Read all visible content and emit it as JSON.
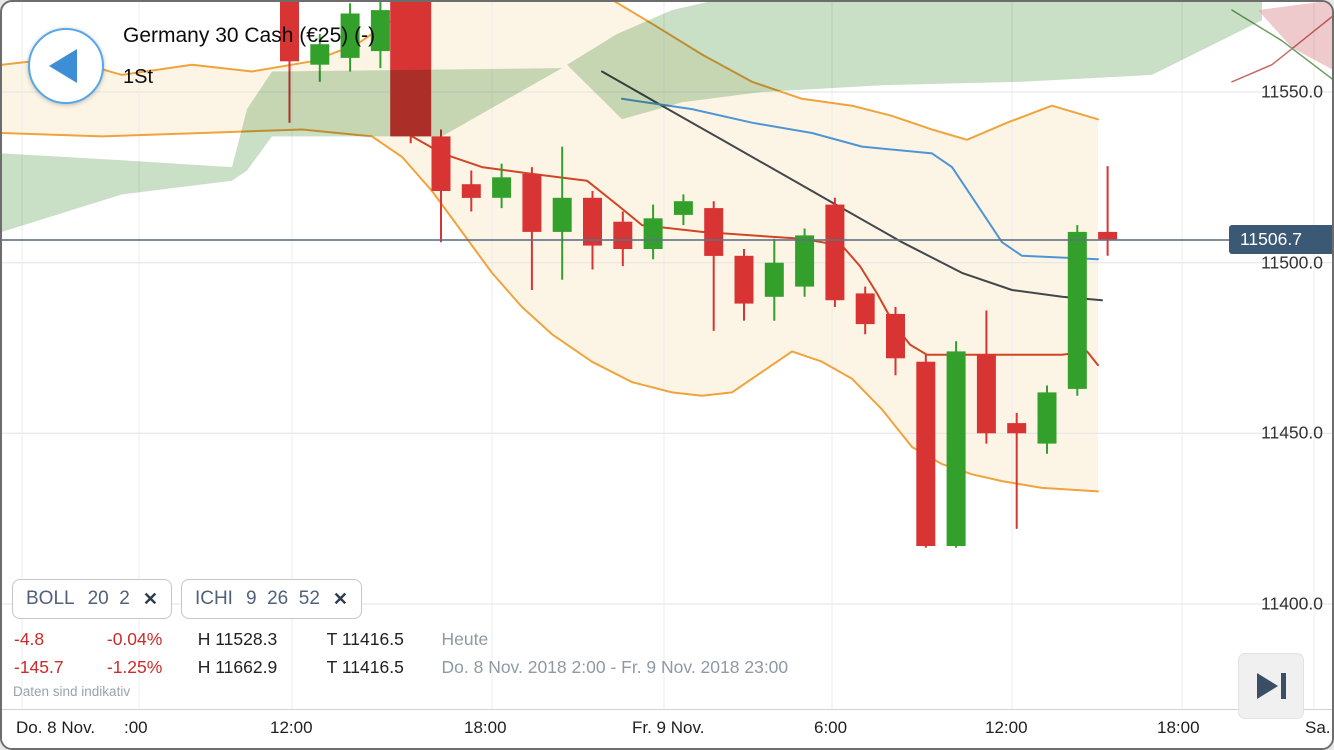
{
  "header": {
    "title": "Germany 30 Cash (€25) (-)",
    "timeframe": "1St"
  },
  "ui": {
    "close_glyph": "✕"
  },
  "chips": [
    {
      "label": "BOLL",
      "params": "20  2"
    },
    {
      "label": "ICHI",
      "params": "9  26  52"
    }
  ],
  "stats": {
    "row1": {
      "change": "-4.8",
      "change_pct": "-0.04%",
      "high": "H 11528.3",
      "low": "T 11416.5",
      "period": "Heute"
    },
    "row2": {
      "change": "-145.7",
      "change_pct": "-1.25%",
      "high": "H 11662.9",
      "low": "T 11416.5",
      "period": "Do. 8 Nov. 2018 2:00 - Fr. 9 Nov. 2018 23:00"
    },
    "disclaimer": "Daten sind indikativ"
  },
  "price_axis": {
    "labels": [
      "11550.0",
      "11500.0",
      "11450.0",
      "11400.0"
    ],
    "current_label": "11506.7"
  },
  "time_axis": {
    "labels": [
      "Do. 8 Nov.",
      ":00",
      "12:00",
      "18:00",
      "Fr. 9 Nov.",
      "6:00",
      "12:00",
      "18:00",
      "Sa."
    ]
  },
  "chart_data": {
    "type": "candlestick",
    "instrument": "Germany 30 Cash (€25)",
    "interval": "1St (1 hour)",
    "price_ticks": [
      11550.0,
      11500.0,
      11450.0,
      11400.0
    ],
    "current_price": 11506.7,
    "session_high": 11528.3,
    "session_low": 11416.5,
    "range_high": 11662.9,
    "range_low": 11416.5,
    "colors": {
      "up": "#33a02c",
      "down": "#d93434",
      "band_fill": "#fcf5e6"
    },
    "candles": [
      {
        "t": "Do. 11:00",
        "o": 11582.0,
        "h": 11588.0,
        "l": 11541.0,
        "c": 11559.0
      },
      {
        "t": "Do. 12:00",
        "o": 11558.0,
        "h": 11567.0,
        "l": 11553.0,
        "c": 11564.0
      },
      {
        "t": "Do. 13:00",
        "o": 11560.0,
        "h": 11576.0,
        "l": 11556.0,
        "c": 11573.0
      },
      {
        "t": "Do. 14:00",
        "o": 11562.0,
        "h": 11577.0,
        "l": 11557.0,
        "c": 11574.0
      },
      {
        "t": "Do. 15:00",
        "o": 11583.0,
        "h": 11590.0,
        "l": 11535.0,
        "c": 11537.0
      },
      {
        "t": "Do. 16:00",
        "o": 11537.0,
        "h": 11539.0,
        "l": 11506.0,
        "c": 11521.0
      },
      {
        "t": "Do. 17:00",
        "o": 11523.0,
        "h": 11527.0,
        "l": 11515.0,
        "c": 11519.0
      },
      {
        "t": "Do. 18:00",
        "o": 11519.0,
        "h": 11529.0,
        "l": 11516.0,
        "c": 11525.0
      },
      {
        "t": "Do. 19:00",
        "o": 11526.0,
        "h": 11528.0,
        "l": 11492.0,
        "c": 11509.0
      },
      {
        "t": "Do. 20:00",
        "o": 11509.0,
        "h": 11534.0,
        "l": 11495.0,
        "c": 11519.0
      },
      {
        "t": "Do. 21:00",
        "o": 11519.0,
        "h": 11521.0,
        "l": 11498.0,
        "c": 11505.0
      },
      {
        "t": "Do. 22:00",
        "o": 11512.0,
        "h": 11515.0,
        "l": 11499.0,
        "c": 11504.0
      },
      {
        "t": "Do. 23:00",
        "o": 11504.0,
        "h": 11517.0,
        "l": 11501.0,
        "c": 11513.0
      },
      {
        "t": "Fr. 0:00",
        "o": 11514.0,
        "h": 11520.0,
        "l": 11511.0,
        "c": 11518.0
      },
      {
        "t": "Fr. 1:00",
        "o": 11516.0,
        "h": 11518.0,
        "l": 11480.0,
        "c": 11502.0
      },
      {
        "t": "Fr. 2:00",
        "o": 11502.0,
        "h": 11504.0,
        "l": 11483.0,
        "c": 11488.0
      },
      {
        "t": "Fr. 3:00",
        "o": 11490.0,
        "h": 11507.0,
        "l": 11483.0,
        "c": 11500.0
      },
      {
        "t": "Fr. 4:00",
        "o": 11493.0,
        "h": 11510.0,
        "l": 11490.0,
        "c": 11508.0
      },
      {
        "t": "Fr. 5:00",
        "o": 11517.0,
        "h": 11519.0,
        "l": 11487.0,
        "c": 11489.0
      },
      {
        "t": "Fr. 6:00",
        "o": 11491.0,
        "h": 11493.0,
        "l": 11479.0,
        "c": 11482.0
      },
      {
        "t": "Fr. 7:00",
        "o": 11485.0,
        "h": 11487.0,
        "l": 11467.0,
        "c": 11472.0
      },
      {
        "t": "Fr. 8:00",
        "o": 11471.0,
        "h": 11473.0,
        "l": 11416.5,
        "c": 11417.0
      },
      {
        "t": "Fr. 9:00",
        "o": 11417.0,
        "h": 11477.0,
        "l": 11416.5,
        "c": 11474.0
      },
      {
        "t": "Fr. 10:00",
        "o": 11473.0,
        "h": 11486.0,
        "l": 11447.0,
        "c": 11450.0
      },
      {
        "t": "Fr. 11:00",
        "o": 11453.0,
        "h": 11456.0,
        "l": 11422.0,
        "c": 11450.0
      },
      {
        "t": "Fr. 12:00",
        "o": 11447.0,
        "h": 11464.0,
        "l": 11444.0,
        "c": 11462.0
      },
      {
        "t": "Fr. 13:00",
        "o": 11463.0,
        "h": 11511.0,
        "l": 11461.0,
        "c": 11509.0
      },
      {
        "t": "Fr. 14:00",
        "o": 11509.0,
        "h": 11528.3,
        "l": 11502.0,
        "c": 11506.7
      }
    ],
    "overlays": [
      {
        "name": "bollinger-upper",
        "color": "#f0a33c",
        "width": 2,
        "points": [
          [
            0,
            11558
          ],
          [
            60,
            11560
          ],
          [
            120,
            11555
          ],
          [
            190,
            11558
          ],
          [
            250,
            11556
          ],
          [
            310,
            11559
          ],
          [
            355,
            11564
          ],
          [
            395,
            11572
          ],
          [
            435,
            11581
          ],
          [
            480,
            11586
          ],
          [
            530,
            11587
          ],
          [
            570,
            11583
          ],
          [
            610,
            11577
          ],
          [
            650,
            11570
          ],
          [
            700,
            11561
          ],
          [
            750,
            11553
          ],
          [
            800,
            11548
          ],
          [
            850,
            11546
          ],
          [
            890,
            11543
          ],
          [
            930,
            11539
          ],
          [
            965,
            11536
          ],
          [
            1005,
            11541
          ],
          [
            1050,
            11546
          ],
          [
            1096,
            11542
          ]
        ]
      },
      {
        "name": "bollinger-lower",
        "color": "#f0a33c",
        "width": 2,
        "points": [
          [
            0,
            11538
          ],
          [
            100,
            11537
          ],
          [
            200,
            11538
          ],
          [
            300,
            11539
          ],
          [
            370,
            11537
          ],
          [
            400,
            11531
          ],
          [
            430,
            11521
          ],
          [
            460,
            11509
          ],
          [
            490,
            11497
          ],
          [
            520,
            11487
          ],
          [
            550,
            11479
          ],
          [
            590,
            11471
          ],
          [
            630,
            11465
          ],
          [
            670,
            11462
          ],
          [
            700,
            11461
          ],
          [
            730,
            11462
          ],
          [
            760,
            11468
          ],
          [
            790,
            11474
          ],
          [
            820,
            11471
          ],
          [
            850,
            11466
          ],
          [
            880,
            11457
          ],
          [
            910,
            11446
          ],
          [
            940,
            11441
          ],
          [
            970,
            11438
          ],
          [
            1000,
            11436
          ],
          [
            1040,
            11434
          ],
          [
            1096,
            11433
          ]
        ]
      },
      {
        "name": "ichimoku-chikou",
        "color": "#42474c",
        "width": 2,
        "points": [
          [
            600,
            11556
          ],
          [
            660,
            11546
          ],
          [
            720,
            11536
          ],
          [
            780,
            11526
          ],
          [
            840,
            11516
          ],
          [
            900,
            11506
          ],
          [
            960,
            11497
          ],
          [
            1010,
            11492
          ],
          [
            1060,
            11490
          ],
          [
            1100,
            11489
          ]
        ]
      },
      {
        "name": "ichimoku-kijun",
        "color": "#4f94d4",
        "width": 2,
        "points": [
          [
            620,
            11548
          ],
          [
            690,
            11545
          ],
          [
            750,
            11541
          ],
          [
            810,
            11538
          ],
          [
            860,
            11534
          ],
          [
            930,
            11532
          ],
          [
            950,
            11528
          ],
          [
            975,
            11517
          ],
          [
            1000,
            11506
          ],
          [
            1020,
            11502
          ],
          [
            1096,
            11501
          ]
        ]
      },
      {
        "name": "ichimoku-tenkan",
        "color": "#cf4526",
        "width": 2,
        "points": [
          [
            398,
            11539
          ],
          [
            440,
            11532
          ],
          [
            480,
            11528
          ],
          [
            530,
            11526
          ],
          [
            585,
            11524
          ],
          [
            615,
            11517
          ],
          [
            640,
            11511
          ],
          [
            700,
            11509
          ],
          [
            750,
            11508
          ],
          [
            800,
            11507
          ],
          [
            840,
            11505
          ],
          [
            858,
            11499
          ],
          [
            875,
            11491
          ],
          [
            892,
            11482
          ],
          [
            908,
            11476
          ],
          [
            925,
            11473
          ],
          [
            1000,
            11473
          ],
          [
            1060,
            11473
          ],
          [
            1085,
            11474
          ],
          [
            1096,
            11470
          ]
        ]
      },
      {
        "name": "senkou-a-right",
        "color": "#c96a6a",
        "width": 1.5,
        "points": [
          [
            1230,
            11553
          ],
          [
            1270,
            11558
          ],
          [
            1334,
            11573
          ]
        ]
      },
      {
        "name": "senkou-b-right",
        "color": "#6f9e64",
        "width": 1.5,
        "points": [
          [
            1230,
            11574
          ],
          [
            1280,
            11565
          ],
          [
            1334,
            11553
          ]
        ]
      }
    ],
    "clouds": [
      {
        "name": "kumo-bullish-left",
        "color": "#9dc497",
        "opacity": 0.55,
        "points": [
          [
            0,
            11532
          ],
          [
            120,
            11530
          ],
          [
            230,
            11528
          ],
          [
            245,
            11545
          ],
          [
            270,
            11556
          ],
          [
            560,
            11557
          ],
          [
            440,
            11537
          ],
          [
            270,
            11537
          ],
          [
            245,
            11527
          ],
          [
            230,
            11524
          ],
          [
            120,
            11520
          ],
          [
            0,
            11509
          ]
        ]
      },
      {
        "name": "kumo-bullish-main",
        "color": "#9dc497",
        "opacity": 0.55,
        "points": [
          [
            565,
            11558
          ],
          [
            615,
            11567
          ],
          [
            670,
            11574
          ],
          [
            730,
            11578
          ],
          [
            1260,
            11578
          ],
          [
            1260,
            11571
          ],
          [
            1150,
            11555
          ],
          [
            1020,
            11553
          ],
          [
            880,
            11552
          ],
          [
            760,
            11550
          ],
          [
            680,
            11547
          ],
          [
            620,
            11542
          ]
        ]
      },
      {
        "name": "kumo-bearish-right",
        "color": "#e2a6aa",
        "opacity": 0.6,
        "points": [
          [
            1256,
            11574
          ],
          [
            1334,
            11577
          ],
          [
            1334,
            11556
          ],
          [
            1290,
            11563
          ]
        ]
      }
    ]
  }
}
